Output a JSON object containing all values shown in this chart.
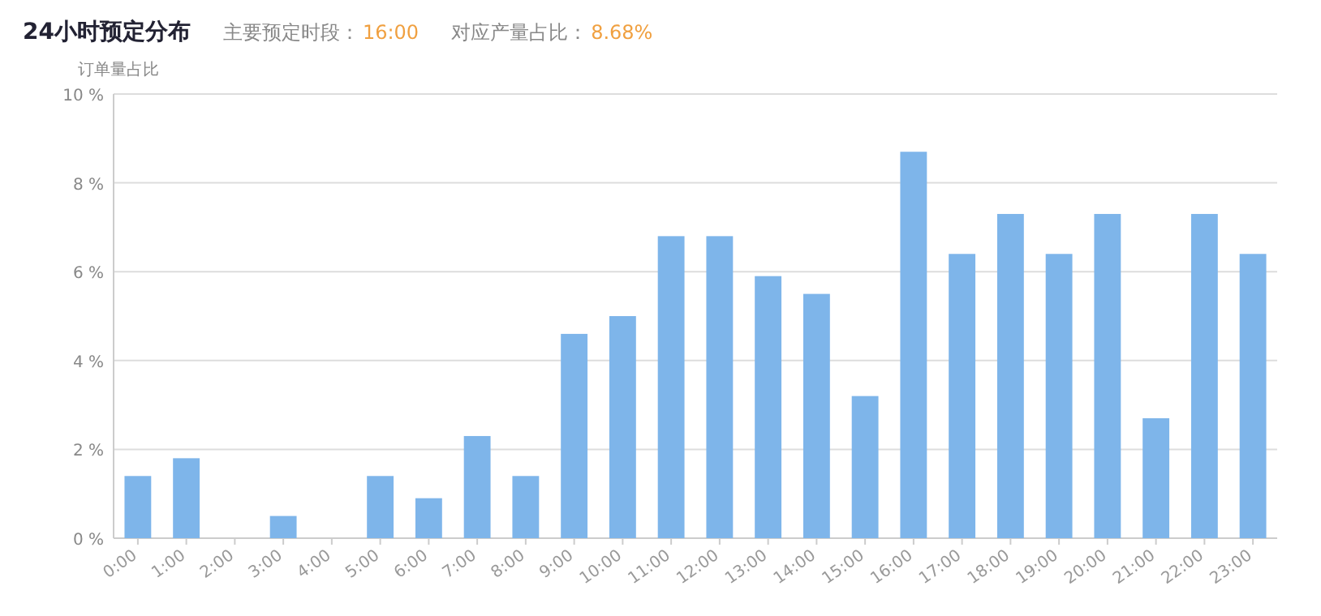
{
  "chart_data": {
    "type": "bar",
    "title": "24小时预定分布",
    "annotations": [
      "主要预定时段：",
      "16:00",
      "对应产量占比：",
      "8.68%"
    ],
    "ylabel": "订单量占比",
    "categories": [
      "0:00",
      "1:00",
      "2:00",
      "3:00",
      "4:00",
      "5:00",
      "6:00",
      "7:00",
      "8:00",
      "9:00",
      "10:00",
      "11:00",
      "12:00",
      "13:00",
      "14:00",
      "15:00",
      "16:00",
      "17:00",
      "18:00",
      "19:00",
      "20:00",
      "21:00",
      "22:00",
      "23:00"
    ],
    "values": [
      1.4,
      1.8,
      0,
      0.5,
      0,
      1.4,
      0.9,
      2.3,
      1.4,
      4.6,
      5.0,
      6.8,
      6.8,
      5.9,
      5.5,
      3.2,
      8.7,
      6.4,
      7.3,
      6.4,
      7.3,
      2.7,
      7.3,
      6.4
    ],
    "color": "#7eb5ea",
    "ylim": [
      0,
      10
    ],
    "yticks": [
      {
        "value": 0,
        "label": "0 %"
      },
      {
        "value": 2,
        "label": "2 %"
      },
      {
        "value": 4,
        "label": "4 %"
      },
      {
        "value": 6,
        "label": "6 %"
      },
      {
        "value": 8,
        "label": "8 %"
      },
      {
        "value": 10,
        "label": "10 %"
      }
    ],
    "grid": "y"
  }
}
